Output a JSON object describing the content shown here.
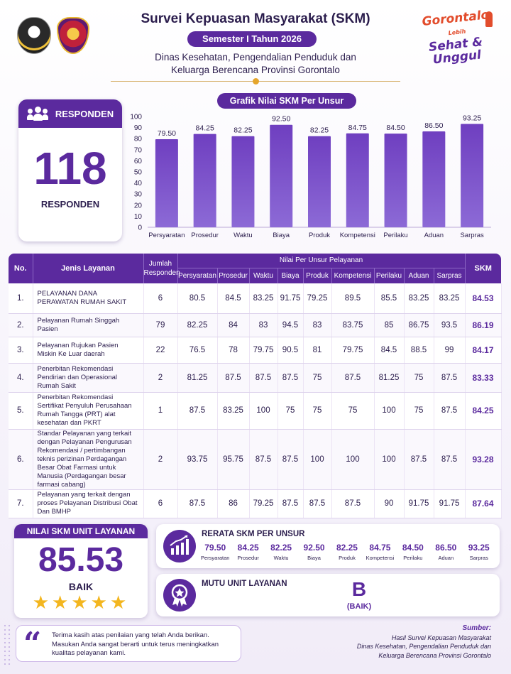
{
  "header": {
    "title": "Survei Kepuasan Masyarakat (SKM)",
    "semester": "Semester I Tahun 2026",
    "dept_line1": "Dinas Kesehatan, Pengendalian Penduduk dan",
    "dept_line2": "Keluarga Berencana Provinsi Gorontalo",
    "brand_line1": "Gorontalo",
    "brand_small": "Lebih",
    "brand_line2": "Sehat & Unggul"
  },
  "responden": {
    "header": "RESPONDEN",
    "count": "118",
    "label": "RESPONDEN"
  },
  "chart_title": "Grafik Nilai SKM Per Unsur",
  "chart_data": {
    "type": "bar",
    "title": "Grafik Nilai SKM Per Unsur",
    "categories": [
      "Persyaratan",
      "Prosedur",
      "Waktu",
      "Biaya",
      "Produk",
      "Kompetensi",
      "Perilaku",
      "Aduan",
      "Sarpras"
    ],
    "values": [
      79.5,
      84.25,
      82.25,
      92.5,
      82.25,
      84.75,
      84.5,
      86.5,
      93.25
    ],
    "labels": [
      "79.50",
      "84.25",
      "82.25",
      "92.50",
      "82.25",
      "84.75",
      "84.50",
      "86.50",
      "93.25"
    ],
    "ylim": [
      0,
      100
    ],
    "yticks": [
      0,
      10,
      20,
      30,
      40,
      50,
      60,
      70,
      80,
      90,
      100
    ],
    "xlabel": "",
    "ylabel": "",
    "grid": false,
    "bar_color": "#6a3ab8"
  },
  "table": {
    "h_no": "No.",
    "h_jenis": "Jenis Layanan",
    "h_jumlah": "Jumlah Responden",
    "h_group": "Nilai Per Unsur Pelayanan",
    "h_skm": "SKM",
    "units": [
      "Persyaratan",
      "Prosedur",
      "Waktu",
      "Biaya",
      "Produk",
      "Kompetensi",
      "Perilaku",
      "Aduan",
      "Sarpras"
    ],
    "rows": [
      {
        "no": "1.",
        "name": "PELAYANAN DANA PERAWATAN RUMAH SAKIT",
        "n": "6",
        "vals": [
          "80.5",
          "84.5",
          "83.25",
          "91.75",
          "79.25",
          "89.5",
          "85.5",
          "83.25",
          "83.25"
        ],
        "skm": "84.53"
      },
      {
        "no": "2.",
        "name": "Pelayanan Rumah Singgah Pasien",
        "n": "79",
        "vals": [
          "82.25",
          "84",
          "83",
          "94.5",
          "83",
          "83.75",
          "85",
          "86.75",
          "93.5"
        ],
        "skm": "86.19"
      },
      {
        "no": "3.",
        "name": "Pelayanan Rujukan Pasien Miskin Ke Luar daerah",
        "n": "22",
        "vals": [
          "76.5",
          "78",
          "79.75",
          "90.5",
          "81",
          "79.75",
          "84.5",
          "88.5",
          "99"
        ],
        "skm": "84.17"
      },
      {
        "no": "4.",
        "name": "Penerbitan Rekomendasi Pendirian dan Operasional Rumah Sakit",
        "n": "2",
        "vals": [
          "81.25",
          "87.5",
          "87.5",
          "87.5",
          "75",
          "87.5",
          "81.25",
          "75",
          "87.5"
        ],
        "skm": "83.33"
      },
      {
        "no": "5.",
        "name": "Penerbitan Rekomendasi Sertifikat Penyuluh Perusahaan Rumah Tangga (PRT) alat kesehatan dan PKRT",
        "n": "1",
        "vals": [
          "87.5",
          "83.25",
          "100",
          "75",
          "75",
          "75",
          "100",
          "75",
          "87.5"
        ],
        "skm": "84.25"
      },
      {
        "no": "6.",
        "name": "Standar Pelayanan yang terkait dengan Pelayanan Pengurusan Rekomendasi / pertimbangan teknis perizinan Perdagangan Besar Obat Farmasi untuk Manusia (Perdagangan besar farmasi cabang)",
        "n": "2",
        "vals": [
          "93.75",
          "95.75",
          "87.5",
          "87.5",
          "100",
          "100",
          "100",
          "87.5",
          "87.5"
        ],
        "skm": "93.28"
      },
      {
        "no": "7.",
        "name": "Pelayanan yang terkait dengan proses Pelayanan Distribusi Obat Dan BMHP",
        "n": "6",
        "vals": [
          "87.5",
          "86",
          "79.25",
          "87.5",
          "87.5",
          "87.5",
          "90",
          "91.75",
          "91.75"
        ],
        "skm": "87.64"
      }
    ]
  },
  "unit": {
    "header": "NILAI SKM UNIT LAYANAN",
    "value": "85.53",
    "label": "BAIK",
    "stars": "★★★★★"
  },
  "rerata": {
    "title": "RERATA SKM PER UNSUR",
    "items": [
      {
        "v": "79.50",
        "l": "Persyaratan"
      },
      {
        "v": "84.25",
        "l": "Prosedur"
      },
      {
        "v": "82.25",
        "l": "Waktu"
      },
      {
        "v": "92.50",
        "l": "Biaya"
      },
      {
        "v": "82.25",
        "l": "Produk"
      },
      {
        "v": "84.75",
        "l": "Kompetensi"
      },
      {
        "v": "84.50",
        "l": "Perilaku"
      },
      {
        "v": "86.50",
        "l": "Aduan"
      },
      {
        "v": "93.25",
        "l": "Sarpras"
      }
    ]
  },
  "mutu": {
    "title": "MUTU UNIT LAYANAN",
    "grade": "B",
    "sub": "(BAIK)"
  },
  "footer": {
    "quote": "Terima kasih atas penilaian yang telah Anda berikan. Masukan Anda sangat berarti untuk terus meningkatkan kualitas pelayanan kami.",
    "source_title": "Sumber:",
    "source_l1": "Hasil Survei Kepuasan Masyarakat",
    "source_l2": "Dinas Kesehatan, Pengendalian Penduduk dan",
    "source_l3": "Keluarga Berencana Provinsi Gorontalo"
  }
}
